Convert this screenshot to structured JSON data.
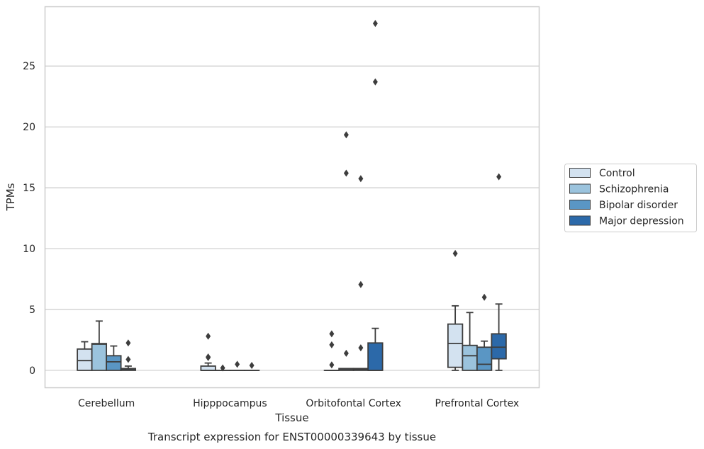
{
  "chart_data": {
    "type": "box",
    "title": "",
    "xlabel": "Tissue",
    "ylabel": "TPMs",
    "caption": "Transcript expression for ENST00000339643 by tissue",
    "categories": [
      "Cerebellum",
      "Hipppocampus",
      "Orbitofontal Cortex",
      "Prefrontal Cortex"
    ],
    "ylim": [
      -1.4,
      29.9
    ],
    "yticks": [
      0,
      5,
      10,
      15,
      20,
      25
    ],
    "grid": "horizontal",
    "legend_position": "right",
    "series": [
      {
        "name": "Control",
        "color": "#d3e2f0",
        "boxes": [
          {
            "min": 0,
            "q1": 0,
            "median": 0.8,
            "q3": 1.75,
            "max": 2.35,
            "outliers": []
          },
          {
            "min": 0,
            "q1": 0,
            "median": 0,
            "q3": 0.35,
            "max": 0.6,
            "outliers": [
              1.05,
              1.1,
              2.8
            ]
          },
          {
            "min": 0,
            "q1": 0,
            "median": 0,
            "q3": 0,
            "max": 0,
            "outliers": [
              0.45,
              2.1,
              3.0
            ]
          },
          {
            "min": 0,
            "q1": 0.25,
            "median": 2.2,
            "q3": 3.8,
            "max": 5.3,
            "outliers": [
              9.6
            ]
          }
        ]
      },
      {
        "name": "Schizophrenia",
        "color": "#9bc3dd",
        "boxes": [
          {
            "min": 0,
            "q1": 0,
            "median": 2.15,
            "q3": 2.2,
            "max": 4.05,
            "outliers": []
          },
          {
            "min": 0,
            "q1": 0,
            "median": 0,
            "q3": 0,
            "max": 0,
            "outliers": [
              0.2
            ]
          },
          {
            "min": 0,
            "q1": 0,
            "median": 0.05,
            "q3": 0.15,
            "max": 0.15,
            "outliers": [
              1.4,
              16.2,
              19.35
            ]
          },
          {
            "min": 0,
            "q1": 0,
            "median": 1.2,
            "q3": 2.05,
            "max": 4.75,
            "outliers": []
          }
        ]
      },
      {
        "name": "Bipolar disorder",
        "color": "#5a96c4",
        "boxes": [
          {
            "min": 0,
            "q1": 0,
            "median": 0.7,
            "q3": 1.2,
            "max": 2.0,
            "outliers": []
          },
          {
            "min": 0,
            "q1": 0,
            "median": 0,
            "q3": 0,
            "max": 0,
            "outliers": [
              0.5
            ]
          },
          {
            "min": 0,
            "q1": 0,
            "median": 0.1,
            "q3": 0.15,
            "max": 0.15,
            "outliers": [
              1.85,
              7.05,
              15.75
            ]
          },
          {
            "min": 0,
            "q1": 0,
            "median": 0.5,
            "q3": 1.9,
            "max": 2.4,
            "outliers": [
              6.0
            ]
          }
        ]
      },
      {
        "name": "Major depression",
        "color": "#2c69a9",
        "boxes": [
          {
            "min": 0,
            "q1": 0,
            "median": 0.05,
            "q3": 0.15,
            "max": 0.35,
            "outliers": [
              0.9,
              2.25
            ]
          },
          {
            "min": 0,
            "q1": 0,
            "median": 0,
            "q3": 0,
            "max": 0,
            "outliers": [
              0.4
            ]
          },
          {
            "min": 0,
            "q1": 0,
            "median": 0,
            "q3": 2.25,
            "max": 3.45,
            "outliers": [
              23.7,
              28.5
            ]
          },
          {
            "min": 0,
            "q1": 0.95,
            "median": 1.9,
            "q3": 3.0,
            "max": 5.45,
            "outliers": [
              15.9
            ]
          }
        ]
      }
    ]
  }
}
